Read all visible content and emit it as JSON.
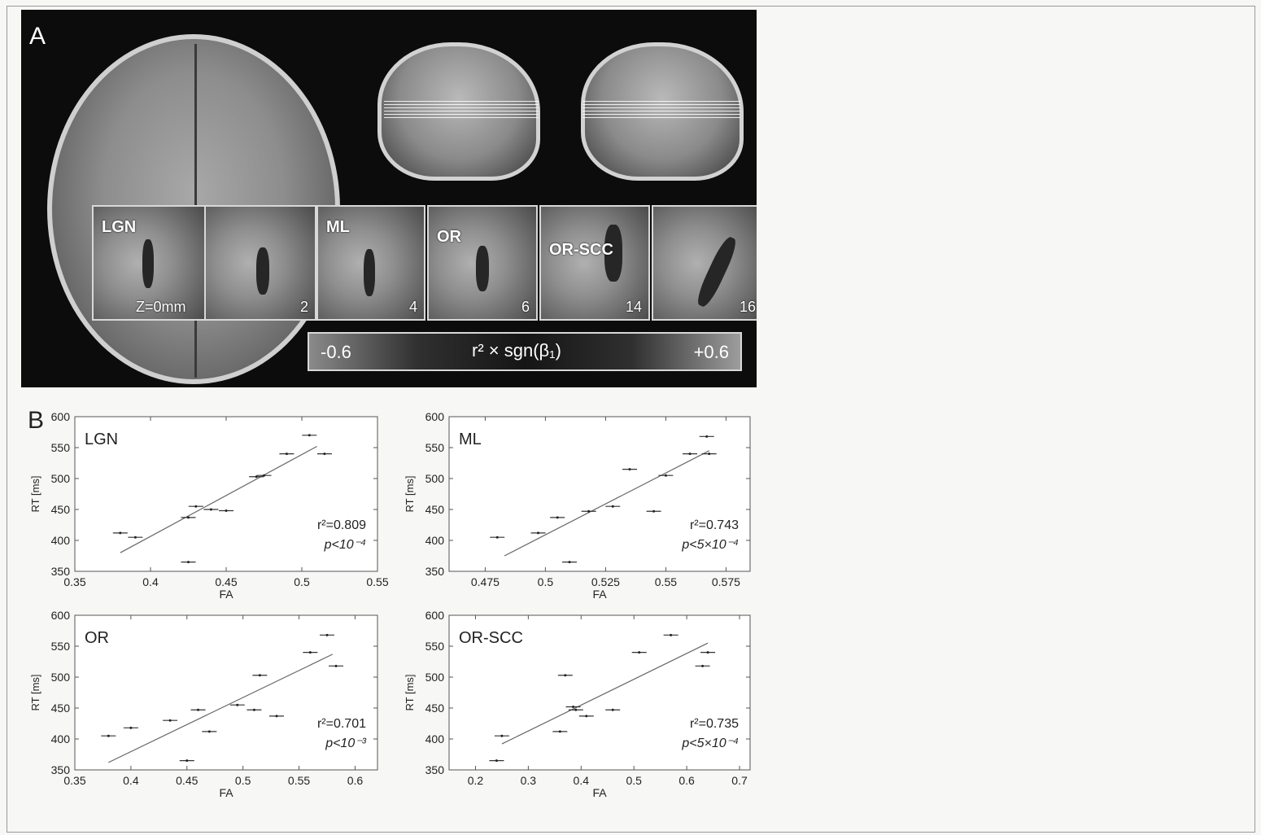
{
  "panel_a": {
    "letter": "A",
    "slices": [
      {
        "region": "LGN",
        "z": "Z=0mm"
      },
      {
        "region": "",
        "z": "2"
      },
      {
        "region": "ML",
        "z": "4"
      },
      {
        "region": "OR",
        "z": "6"
      },
      {
        "region": "OR-SCC",
        "z": "14"
      },
      {
        "region": "",
        "z": "16"
      }
    ],
    "colorbar": {
      "min": "-0.6",
      "max": "+0.6",
      "label": "r² × sgn(β₁)"
    }
  },
  "panel_b": {
    "letter": "B"
  },
  "chart_data": [
    {
      "type": "scatter",
      "title": "LGN",
      "xlabel": "FA",
      "ylabel": "RT [ms]",
      "xlim": [
        0.35,
        0.55
      ],
      "ylim": [
        350,
        600
      ],
      "xticks": [
        "0.35",
        "0.4",
        "0.45",
        "0.5",
        "0.55"
      ],
      "yticks": [
        "350",
        "400",
        "450",
        "500",
        "550",
        "600"
      ],
      "points": [
        [
          0.38,
          412
        ],
        [
          0.39,
          405
        ],
        [
          0.425,
          365
        ],
        [
          0.425,
          437
        ],
        [
          0.43,
          455
        ],
        [
          0.44,
          450
        ],
        [
          0.45,
          448
        ],
        [
          0.47,
          503
        ],
        [
          0.475,
          505
        ],
        [
          0.49,
          540
        ],
        [
          0.505,
          570
        ],
        [
          0.515,
          540
        ]
      ],
      "fit": [
        [
          0.38,
          380
        ],
        [
          0.51,
          552
        ]
      ],
      "annotations": [
        "r²=0.809",
        "p<10⁻⁴"
      ],
      "grid": false
    },
    {
      "type": "scatter",
      "title": "ML",
      "xlabel": "FA",
      "ylabel": "RT [ms]",
      "xlim": [
        0.46,
        0.585
      ],
      "ylim": [
        350,
        600
      ],
      "xticks": [
        "0.475",
        "0.5",
        "0.525",
        "0.55",
        "0.575"
      ],
      "yticks": [
        "350",
        "400",
        "450",
        "500",
        "550",
        "600"
      ],
      "points": [
        [
          0.48,
          405
        ],
        [
          0.497,
          412
        ],
        [
          0.505,
          437
        ],
        [
          0.51,
          365
        ],
        [
          0.518,
          447
        ],
        [
          0.528,
          455
        ],
        [
          0.535,
          515
        ],
        [
          0.545,
          447
        ],
        [
          0.55,
          505
        ],
        [
          0.56,
          540
        ],
        [
          0.567,
          568
        ],
        [
          0.568,
          540
        ]
      ],
      "fit": [
        [
          0.483,
          375
        ],
        [
          0.568,
          545
        ]
      ],
      "annotations": [
        "r²=0.743",
        "p<5×10⁻⁴"
      ],
      "grid": false
    },
    {
      "type": "scatter",
      "title": "OR",
      "xlabel": "FA",
      "ylabel": "RT [ms]",
      "xlim": [
        0.35,
        0.62
      ],
      "ylim": [
        350,
        600
      ],
      "xticks": [
        "0.35",
        "0.4",
        "0.45",
        "0.5",
        "0.55",
        "0.6"
      ],
      "yticks": [
        "350",
        "400",
        "450",
        "500",
        "550",
        "600"
      ],
      "points": [
        [
          0.38,
          405
        ],
        [
          0.4,
          418
        ],
        [
          0.435,
          430
        ],
        [
          0.45,
          365
        ],
        [
          0.46,
          447
        ],
        [
          0.47,
          412
        ],
        [
          0.495,
          455
        ],
        [
          0.51,
          447
        ],
        [
          0.515,
          503
        ],
        [
          0.53,
          437
        ],
        [
          0.56,
          540
        ],
        [
          0.575,
          568
        ],
        [
          0.583,
          518
        ]
      ],
      "fit": [
        [
          0.38,
          362
        ],
        [
          0.58,
          537
        ]
      ],
      "annotations": [
        "r²=0.701",
        "p<10⁻³"
      ],
      "grid": false
    },
    {
      "type": "scatter",
      "title": "OR-SCC",
      "xlabel": "FA",
      "ylabel": "RT [ms]",
      "xlim": [
        0.15,
        0.72
      ],
      "ylim": [
        350,
        600
      ],
      "xticks": [
        "0.2",
        "0.3",
        "0.4",
        "0.5",
        "0.6",
        "0.7"
      ],
      "yticks": [
        "350",
        "400",
        "450",
        "500",
        "550",
        "600"
      ],
      "points": [
        [
          0.24,
          365
        ],
        [
          0.25,
          405
        ],
        [
          0.36,
          412
        ],
        [
          0.37,
          503
        ],
        [
          0.385,
          452
        ],
        [
          0.39,
          447
        ],
        [
          0.41,
          437
        ],
        [
          0.46,
          447
        ],
        [
          0.51,
          540
        ],
        [
          0.57,
          568
        ],
        [
          0.63,
          518
        ],
        [
          0.64,
          540
        ]
      ],
      "fit": [
        [
          0.25,
          392
        ],
        [
          0.64,
          555
        ]
      ],
      "annotations": [
        "r²=0.735",
        "p<5×10⁻⁴"
      ],
      "grid": false
    }
  ]
}
